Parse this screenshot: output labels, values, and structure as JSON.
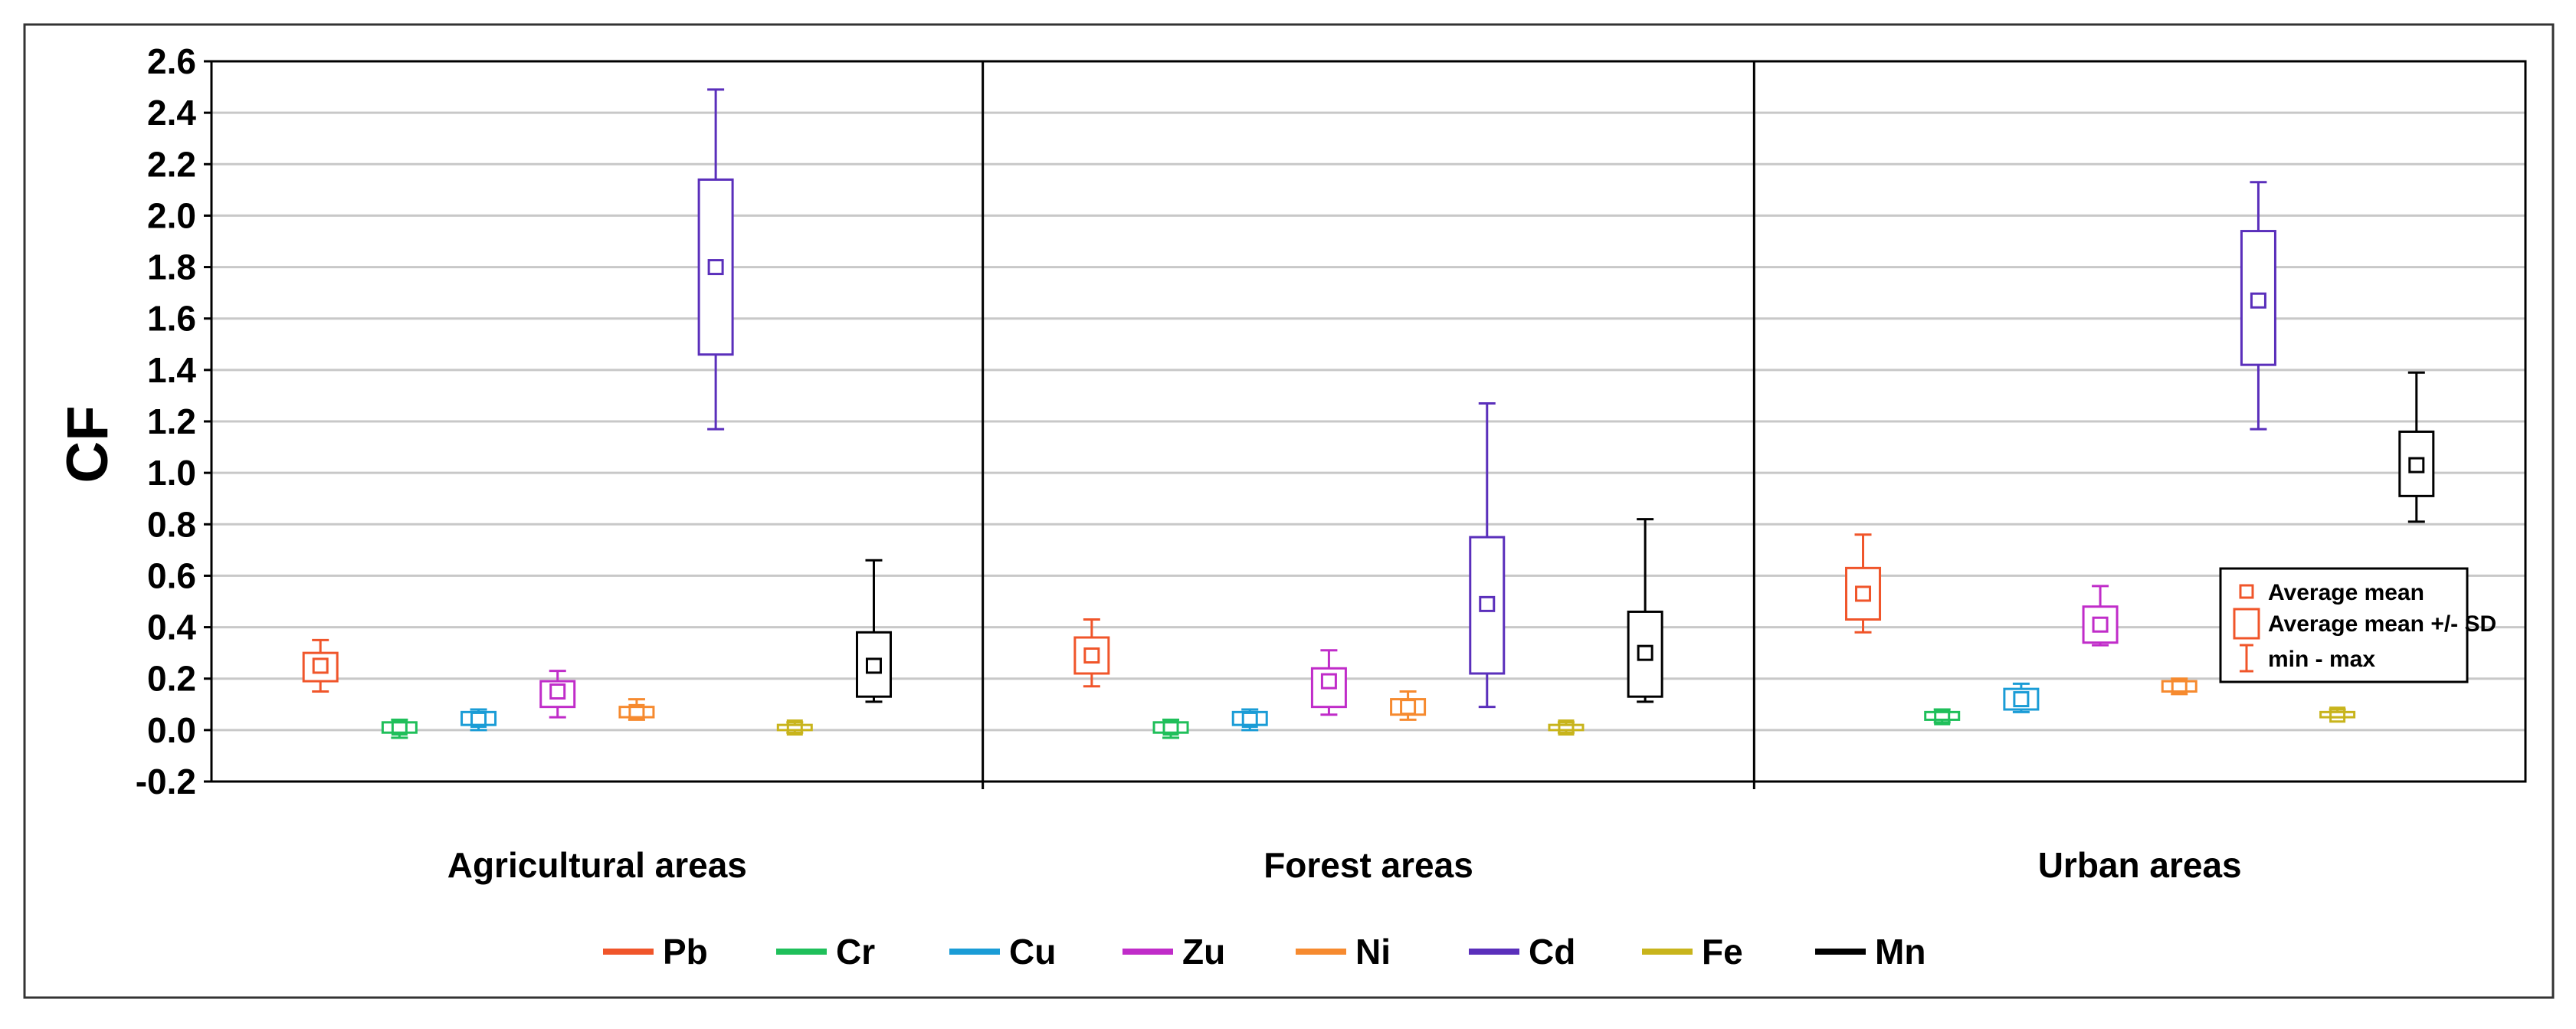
{
  "chart_data": {
    "type": "box",
    "ylabel": "CF",
    "xlabel": "",
    "ylim": [
      -0.2,
      2.6
    ],
    "yticks": [
      "-0.2",
      "0.0",
      "0.2",
      "0.4",
      "0.6",
      "0.8",
      "1.0",
      "1.2",
      "1.4",
      "1.6",
      "1.8",
      "2.0",
      "2.2",
      "2.4",
      "2.6"
    ],
    "grid": true,
    "legend_position": "bottom",
    "groups": [
      "Agricultural areas",
      "Forest areas",
      "Urban areas"
    ],
    "stats_legend": [
      "Average mean",
      "Average mean +/- SD",
      "min - max"
    ],
    "series": [
      {
        "name": "Pb",
        "color": "#f0552a",
        "data": [
          {
            "mean": 0.25,
            "sd_low": 0.19,
            "sd_high": 0.3,
            "min": 0.15,
            "max": 0.35
          },
          {
            "mean": 0.29,
            "sd_low": 0.22,
            "sd_high": 0.36,
            "min": 0.17,
            "max": 0.43
          },
          {
            "mean": 0.53,
            "sd_low": 0.43,
            "sd_high": 0.63,
            "min": 0.38,
            "max": 0.76
          }
        ]
      },
      {
        "name": "Cr",
        "color": "#1fbf5a",
        "data": [
          {
            "mean": 0.01,
            "sd_low": -0.01,
            "sd_high": 0.03,
            "min": -0.03,
            "max": 0.04
          },
          {
            "mean": 0.01,
            "sd_low": -0.01,
            "sd_high": 0.03,
            "min": -0.03,
            "max": 0.04
          },
          {
            "mean": 0.05,
            "sd_low": 0.04,
            "sd_high": 0.07,
            "min": 0.03,
            "max": 0.08
          }
        ]
      },
      {
        "name": "Cu",
        "color": "#1a9cd6",
        "data": [
          {
            "mean": 0.04,
            "sd_low": 0.02,
            "sd_high": 0.07,
            "min": 0.0,
            "max": 0.08
          },
          {
            "mean": 0.04,
            "sd_low": 0.02,
            "sd_high": 0.07,
            "min": 0.0,
            "max": 0.08
          },
          {
            "mean": 0.12,
            "sd_low": 0.08,
            "sd_high": 0.16,
            "min": 0.07,
            "max": 0.18
          }
        ]
      },
      {
        "name": "Zu",
        "color": "#c02cc9",
        "data": [
          {
            "mean": 0.15,
            "sd_low": 0.09,
            "sd_high": 0.19,
            "min": 0.05,
            "max": 0.23
          },
          {
            "mean": 0.19,
            "sd_low": 0.09,
            "sd_high": 0.24,
            "min": 0.06,
            "max": 0.31
          },
          {
            "mean": 0.41,
            "sd_low": 0.34,
            "sd_high": 0.48,
            "min": 0.33,
            "max": 0.56
          }
        ]
      },
      {
        "name": "Ni",
        "color": "#f68a2f",
        "data": [
          {
            "mean": 0.07,
            "sd_low": 0.05,
            "sd_high": 0.09,
            "min": 0.04,
            "max": 0.12
          },
          {
            "mean": 0.09,
            "sd_low": 0.06,
            "sd_high": 0.12,
            "min": 0.04,
            "max": 0.15
          },
          {
            "mean": 0.17,
            "sd_low": 0.15,
            "sd_high": 0.19,
            "min": 0.14,
            "max": 0.2
          }
        ]
      },
      {
        "name": "Cd",
        "color": "#5a2fbb",
        "data": [
          {
            "mean": 1.8,
            "sd_low": 1.46,
            "sd_high": 2.14,
            "min": 1.17,
            "max": 2.49
          },
          {
            "mean": 0.49,
            "sd_low": 0.22,
            "sd_high": 0.75,
            "min": 0.09,
            "max": 1.27
          },
          {
            "mean": 1.67,
            "sd_low": 1.42,
            "sd_high": 1.94,
            "min": 1.17,
            "max": 2.13
          }
        ]
      },
      {
        "name": "Fe",
        "color": "#c8b41c",
        "data": [
          {
            "mean": 0.01,
            "sd_low": 0.0,
            "sd_high": 0.02,
            "min": -0.01,
            "max": 0.03
          },
          {
            "mean": 0.01,
            "sd_low": 0.0,
            "sd_high": 0.02,
            "min": -0.01,
            "max": 0.03
          },
          {
            "mean": 0.06,
            "sd_low": 0.05,
            "sd_high": 0.07,
            "min": 0.05,
            "max": 0.08
          }
        ]
      },
      {
        "name": "Mn",
        "color": "#000000",
        "data": [
          {
            "mean": 0.25,
            "sd_low": 0.13,
            "sd_high": 0.38,
            "min": 0.11,
            "max": 0.66
          },
          {
            "mean": 0.3,
            "sd_low": 0.13,
            "sd_high": 0.46,
            "min": 0.11,
            "max": 0.82
          },
          {
            "mean": 1.03,
            "sd_low": 0.91,
            "sd_high": 1.16,
            "min": 0.81,
            "max": 1.39
          }
        ]
      }
    ]
  }
}
